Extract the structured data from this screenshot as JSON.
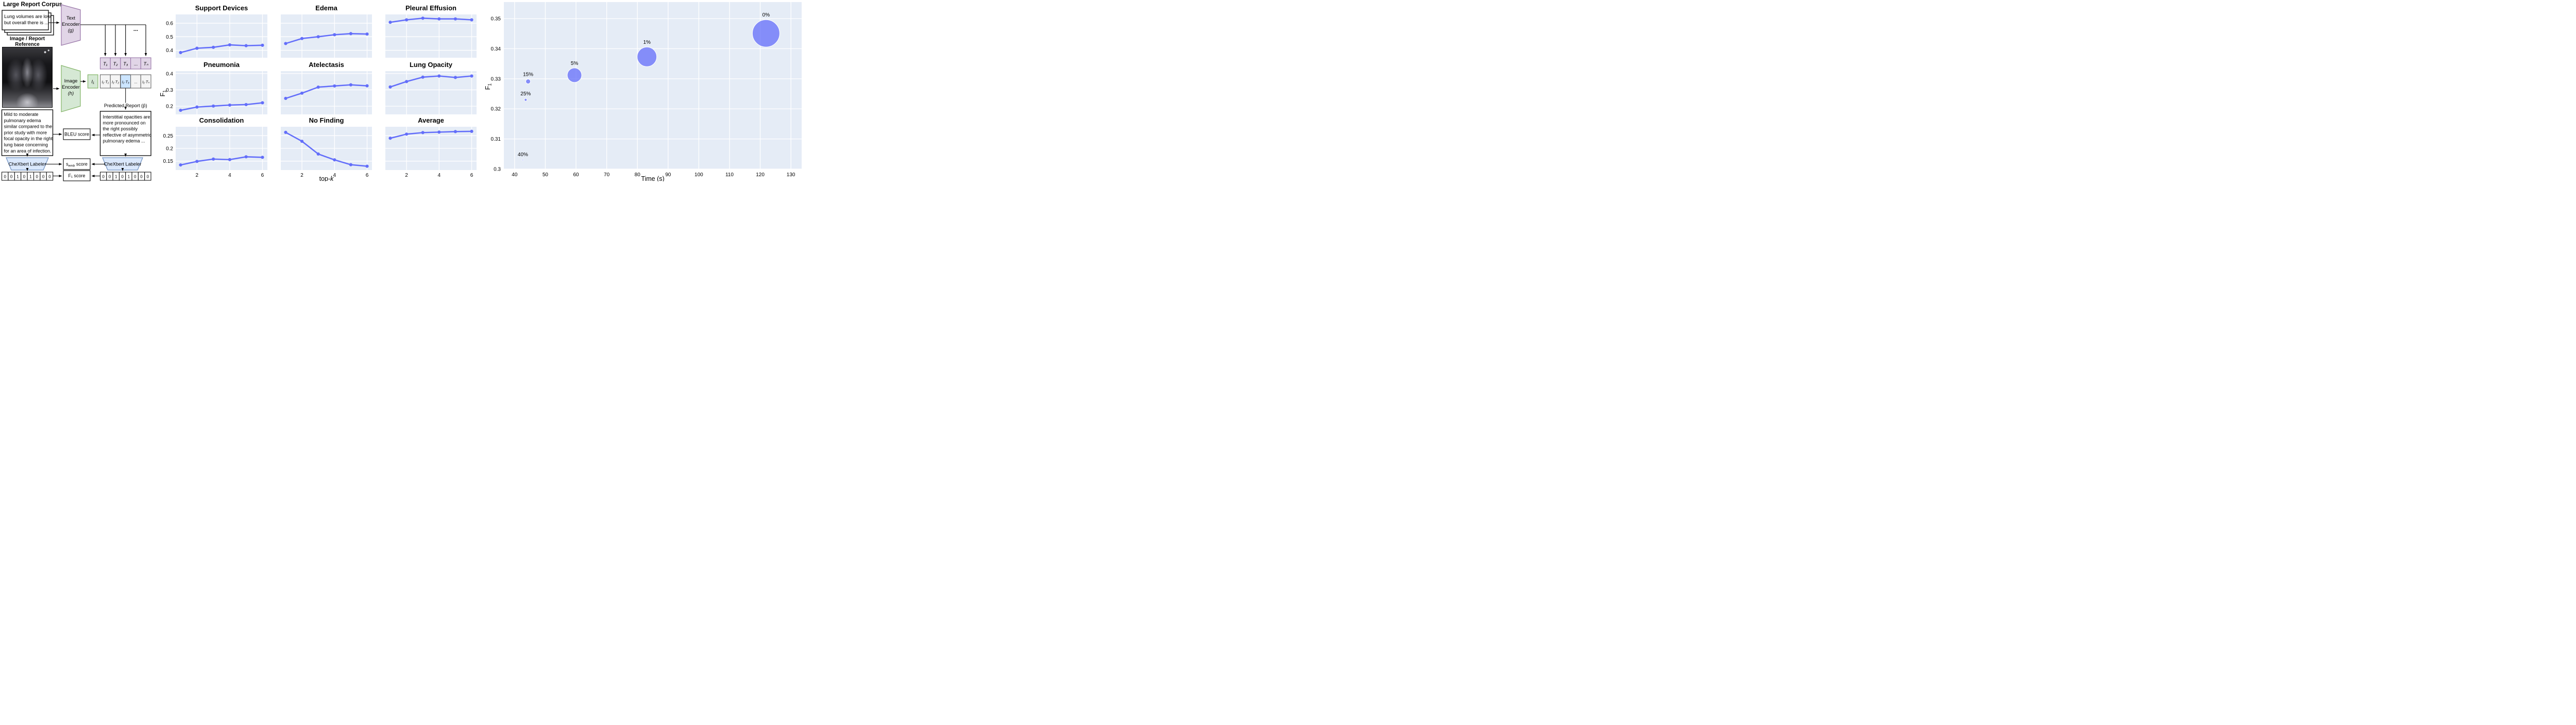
{
  "figure": {
    "corpus_title": "Large Report Corpus",
    "corpus_doc": [
      "Lung volumes are low",
      "but overall there is ..."
    ],
    "text_encoder": [
      "Text",
      "Encoder",
      "(g)"
    ],
    "reference_title": [
      "Image / Report",
      "Reference"
    ],
    "image_encoder": [
      "Image",
      "Encoder",
      "(h)"
    ],
    "ellipsis": "...",
    "token_row": [
      "T₁",
      "T₂",
      "T₃",
      "...",
      "Tₙ"
    ],
    "image_token": "I₁",
    "product_row": [
      "I₁·T₁",
      "I₁·T₂",
      "I₁·T₃",
      "...",
      "I₁·Tₙ"
    ],
    "predicted_label": "Predicted Report (p̂)",
    "predicted_report": [
      "Interstitial opacities are",
      "more pronounced on",
      "the right possibly",
      "reflective of asymmetric",
      "pulmonary edema ..."
    ],
    "reference_report": [
      "Mild to moderate",
      "pulmonary edema",
      "similar compared to the",
      "prior study with more",
      "focal opacity in the right",
      "lung base concerning",
      "for an area of infection."
    ],
    "bleu_label": "BLEU score",
    "semb": {
      "base": "s",
      "sub": "emb",
      "rest": " score"
    },
    "f1_label": "F₁ score",
    "chexbert_label_left": "CheXbert Labeler",
    "chexbert_label_right": "CheXbert Labeler",
    "reference_vector": [
      "0",
      "0",
      "1",
      "0",
      "1",
      "0",
      "0",
      "0"
    ],
    "predicted_vector": [
      "0",
      "0",
      "1",
      "0",
      "1",
      "0",
      "0",
      "0"
    ],
    "colors": {
      "purple_fill": "#E1D5E7",
      "purple_stroke": "#9673A6",
      "green_fill": "#D5E8D4",
      "green_stroke": "#82B366",
      "blue_fill": "#DAE8FC",
      "blue_stroke": "#6C8EBF",
      "highlight_cell": "#CCE5FF",
      "gray_cell": "#F5F5F5"
    }
  },
  "chart_data": [
    {
      "type": "line",
      "layout": "3x3-facet-grid",
      "x": [
        1,
        2,
        3,
        4,
        5,
        6
      ],
      "xlim": [
        0.7,
        6.3
      ],
      "xticks": [
        {
          "v": 2,
          "label": "2"
        },
        {
          "v": 4,
          "label": "4"
        },
        {
          "v": 6,
          "label": "6"
        }
      ],
      "xlabel": {
        "base": "top-",
        "italic": "k"
      },
      "ylabel": {
        "base": "F",
        "sub": "1"
      },
      "grid": "on",
      "legend": "none",
      "plot_bg": "#E5ECF6",
      "grid_color": "#FFFFFF",
      "line_color": "#636EFA",
      "font_color": "#2a3f5f",
      "rows": [
        {
          "ylim": [
            0.345,
            0.665
          ],
          "yticks": [
            {
              "v": 0.4,
              "label": "0.4"
            },
            {
              "v": 0.5,
              "label": "0.5"
            },
            {
              "v": 0.6,
              "label": "0.6"
            }
          ]
        },
        {
          "ylim": [
            0.15,
            0.415
          ],
          "yticks": [
            {
              "v": 0.2,
              "label": "0.2"
            },
            {
              "v": 0.3,
              "label": "0.3"
            },
            {
              "v": 0.4,
              "label": "0.4"
            }
          ]
        },
        {
          "ylim": [
            0.115,
            0.285
          ],
          "yticks": [
            {
              "v": 0.15,
              "label": "0.15"
            },
            {
              "v": 0.2,
              "label": "0.2"
            },
            {
              "v": 0.25,
              "label": "0.25"
            }
          ]
        }
      ],
      "series": [
        {
          "name": "Support Devices",
          "row": 0,
          "col": 0,
          "values": [
            0.383,
            0.415,
            0.422,
            0.44,
            0.434,
            0.437
          ]
        },
        {
          "name": "Edema",
          "row": 0,
          "col": 1,
          "values": [
            0.45,
            0.487,
            0.5,
            0.515,
            0.523,
            0.52
          ]
        },
        {
          "name": "Pleural Effusion",
          "row": 0,
          "col": 2,
          "values": [
            0.607,
            0.625,
            0.637,
            0.632,
            0.632,
            0.625
          ]
        },
        {
          "name": "Pneumonia",
          "row": 1,
          "col": 0,
          "values": [
            0.175,
            0.195,
            0.201,
            0.207,
            0.21,
            0.221
          ]
        },
        {
          "name": "Atelectasis",
          "row": 1,
          "col": 1,
          "values": [
            0.248,
            0.28,
            0.317,
            0.324,
            0.331,
            0.325
          ]
        },
        {
          "name": "Lung Opacity",
          "row": 1,
          "col": 2,
          "values": [
            0.318,
            0.351,
            0.378,
            0.385,
            0.376,
            0.385
          ]
        },
        {
          "name": "Consolidation",
          "row": 2,
          "col": 0,
          "values": [
            0.135,
            0.149,
            0.158,
            0.156,
            0.167,
            0.165
          ]
        },
        {
          "name": "No Finding",
          "row": 2,
          "col": 1,
          "values": [
            0.263,
            0.228,
            0.178,
            0.155,
            0.136,
            0.13
          ]
        },
        {
          "name": "Average",
          "row": 2,
          "col": 2,
          "values": [
            0.24,
            0.256,
            0.262,
            0.264,
            0.266,
            0.267
          ]
        }
      ]
    },
    {
      "type": "scatter-bubble",
      "xlabel": "Time (s)",
      "ylabel": {
        "base": "F",
        "sub": "1"
      },
      "xlim": [
        36.5,
        133.5
      ],
      "ylim": [
        0.3,
        0.3555
      ],
      "grid": "on",
      "plot_bg": "#E5ECF6",
      "grid_color": "#FFFFFF",
      "bubble_fill": "rgba(99,110,250,0.75)",
      "bubble_stroke": "#FFFFFF",
      "font_color": "#2a3f5f",
      "xticks": [
        {
          "v": 40,
          "label": "40"
        },
        {
          "v": 50,
          "label": "50"
        },
        {
          "v": 60,
          "label": "60"
        },
        {
          "v": 70,
          "label": "70"
        },
        {
          "v": 80,
          "label": "80"
        },
        {
          "v": 90,
          "label": "90"
        },
        {
          "v": 100,
          "label": "100"
        },
        {
          "v": 110,
          "label": "110"
        },
        {
          "v": 120,
          "label": "120"
        },
        {
          "v": 130,
          "label": "130"
        }
      ],
      "yticks": [
        {
          "v": 0.3,
          "label": "0.3"
        },
        {
          "v": 0.31,
          "label": "0.31"
        },
        {
          "v": 0.32,
          "label": "0.32"
        },
        {
          "v": 0.33,
          "label": "0.33"
        },
        {
          "v": 0.34,
          "label": "0.34"
        },
        {
          "v": 0.35,
          "label": "0.35"
        }
      ],
      "points": [
        {
          "label": "40%",
          "x": 42.7,
          "y": 0.303,
          "r": 1.3
        },
        {
          "label": "25%",
          "x": 43.6,
          "y": 0.323,
          "r": 2.6
        },
        {
          "label": "15%",
          "x": 44.4,
          "y": 0.3291,
          "r": 4.6
        },
        {
          "label": "5%",
          "x": 59.5,
          "y": 0.3312,
          "r": 14
        },
        {
          "label": "1%",
          "x": 83.1,
          "y": 0.3373,
          "r": 19
        },
        {
          "label": "0%",
          "x": 121.9,
          "y": 0.3451,
          "r": 26.5
        }
      ]
    }
  ]
}
